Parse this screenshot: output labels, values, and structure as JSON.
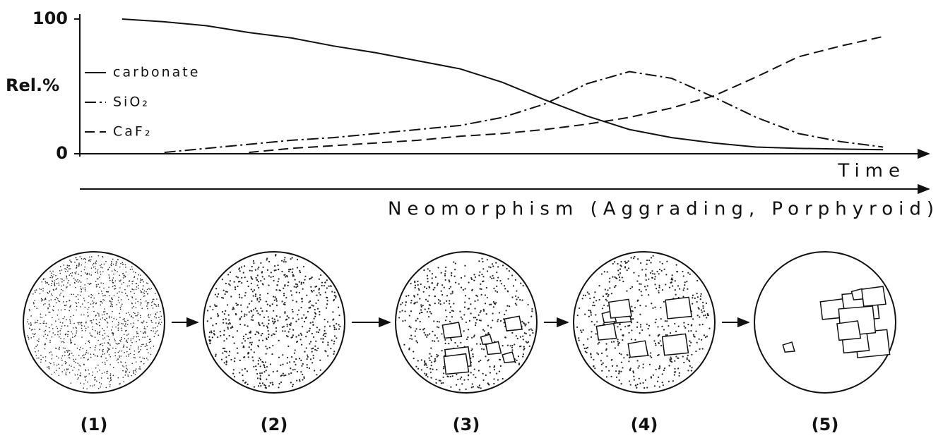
{
  "chart_data": {
    "type": "line",
    "y_label": "Rel.%",
    "x_label": "Time",
    "ylim": [
      0,
      100
    ],
    "yticks": [
      0,
      100
    ],
    "xlim": [
      0,
      100
    ],
    "x": [
      0,
      5,
      10,
      15,
      20,
      25,
      30,
      35,
      40,
      45,
      50,
      55,
      60,
      65,
      70,
      75,
      80,
      85,
      90,
      95,
      100
    ],
    "series": [
      {
        "name": "carbonate",
        "color": "#111111",
        "dash": "solid",
        "values": [
          null,
          100,
          98,
          95,
          90,
          86,
          80,
          75,
          69,
          63,
          53,
          40,
          28,
          18,
          12,
          8,
          5,
          4,
          3.5,
          3,
          null
        ]
      },
      {
        "name": "SiO₂",
        "color": "#111111",
        "dash": "dashdot",
        "values": [
          null,
          null,
          1,
          4,
          7,
          10,
          12,
          15,
          18,
          21,
          27,
          37,
          52,
          61,
          56,
          42,
          27,
          15,
          9,
          5,
          null
        ]
      },
      {
        "name": "CaF₂",
        "color": "#111111",
        "dash": "dashed",
        "values": [
          null,
          null,
          null,
          null,
          1,
          4,
          6,
          8,
          10,
          13,
          15,
          18,
          22,
          27,
          34,
          43,
          57,
          72,
          80,
          87,
          null
        ]
      }
    ]
  },
  "figure": {
    "process": "Neomorphism (Aggrading, Porphyroid)",
    "panels": [
      "(1)",
      "(2)",
      "(3)",
      "(4)",
      "(5)"
    ]
  }
}
